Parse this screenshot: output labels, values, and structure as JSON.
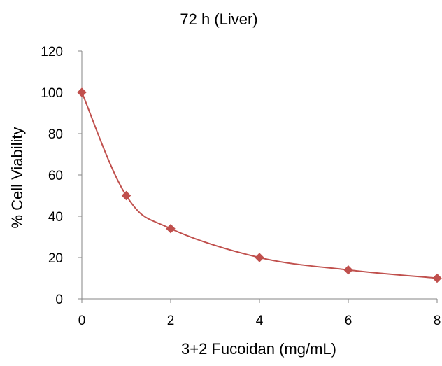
{
  "chart_data": {
    "type": "scatter",
    "title": "72 h (Liver)",
    "xlabel": "3+2 Fucoidan (mg/mL)",
    "ylabel": "% Cell Viability",
    "xlim": [
      0,
      8
    ],
    "ylim": [
      0,
      120
    ],
    "xticks": [
      0,
      2,
      4,
      6,
      8
    ],
    "yticks": [
      0,
      20,
      40,
      60,
      80,
      100,
      120
    ],
    "grid": false,
    "legend": "none",
    "smooth_line": true,
    "series": [
      {
        "x": [
          0,
          1,
          2,
          4,
          6,
          8
        ],
        "y": [
          100,
          50,
          34,
          20,
          14,
          10
        ],
        "color": "#C0504D",
        "marker": "diamond"
      }
    ]
  }
}
